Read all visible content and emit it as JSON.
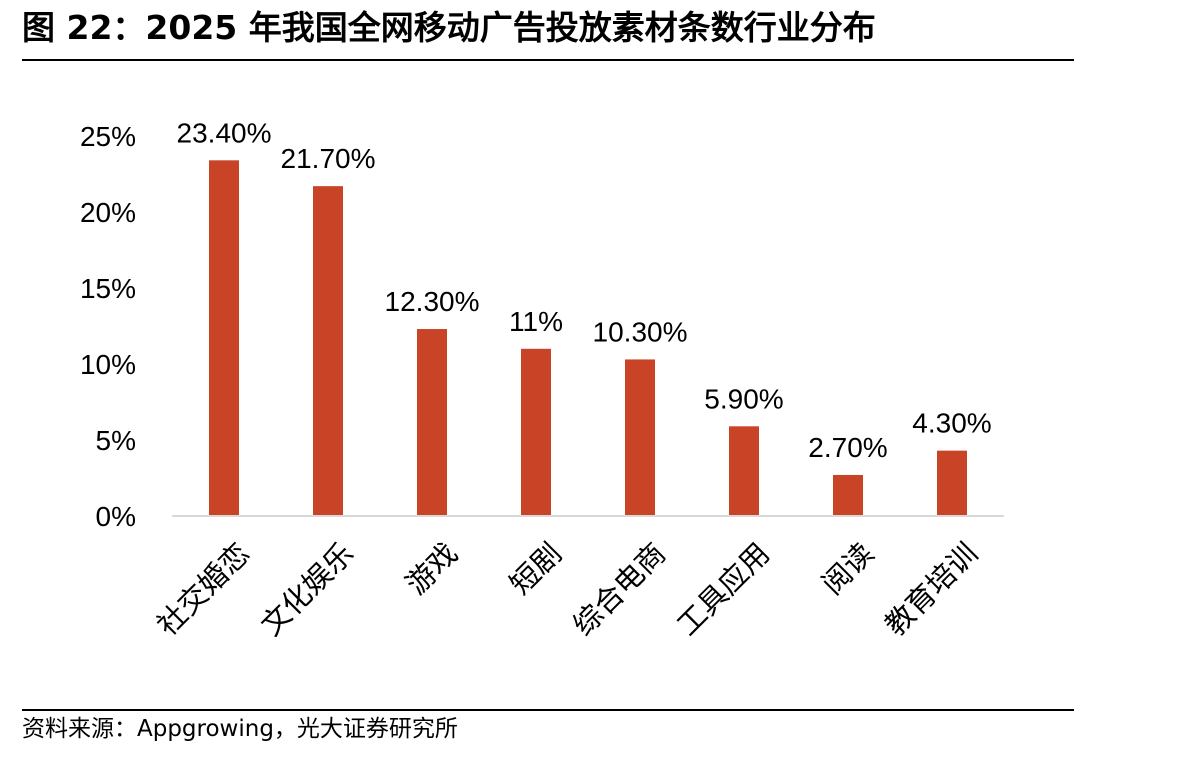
{
  "header": {
    "title": "图 22：2025 年我国全网移动广告投放素材条数行业分布"
  },
  "footer": {
    "source": "资料来源：Appgrowing，光大证券研究所"
  },
  "colors": {
    "bar": "#C94326",
    "axis": "#D9D9D9",
    "rule": "#000000"
  },
  "chart_data": {
    "type": "bar",
    "title": "",
    "xlabel": "",
    "ylabel": "",
    "categories": [
      "社交婚恋",
      "文化娱乐",
      "游戏",
      "短剧",
      "综合电商",
      "工具应用",
      "阅读",
      "教育培训"
    ],
    "values": [
      23.4,
      21.7,
      12.3,
      11,
      10.3,
      5.9,
      2.7,
      4.3
    ],
    "data_labels": [
      "23.40%",
      "21.70%",
      "12.30%",
      "11%",
      "10.30%",
      "5.90%",
      "2.70%",
      "4.30%"
    ],
    "y_ticks": [
      0,
      5,
      10,
      15,
      20,
      25
    ],
    "y_tick_labels": [
      "0%",
      "5%",
      "10%",
      "15%",
      "20%",
      "25%"
    ],
    "ylim": [
      0,
      25
    ],
    "grid": false,
    "legend": "none"
  }
}
